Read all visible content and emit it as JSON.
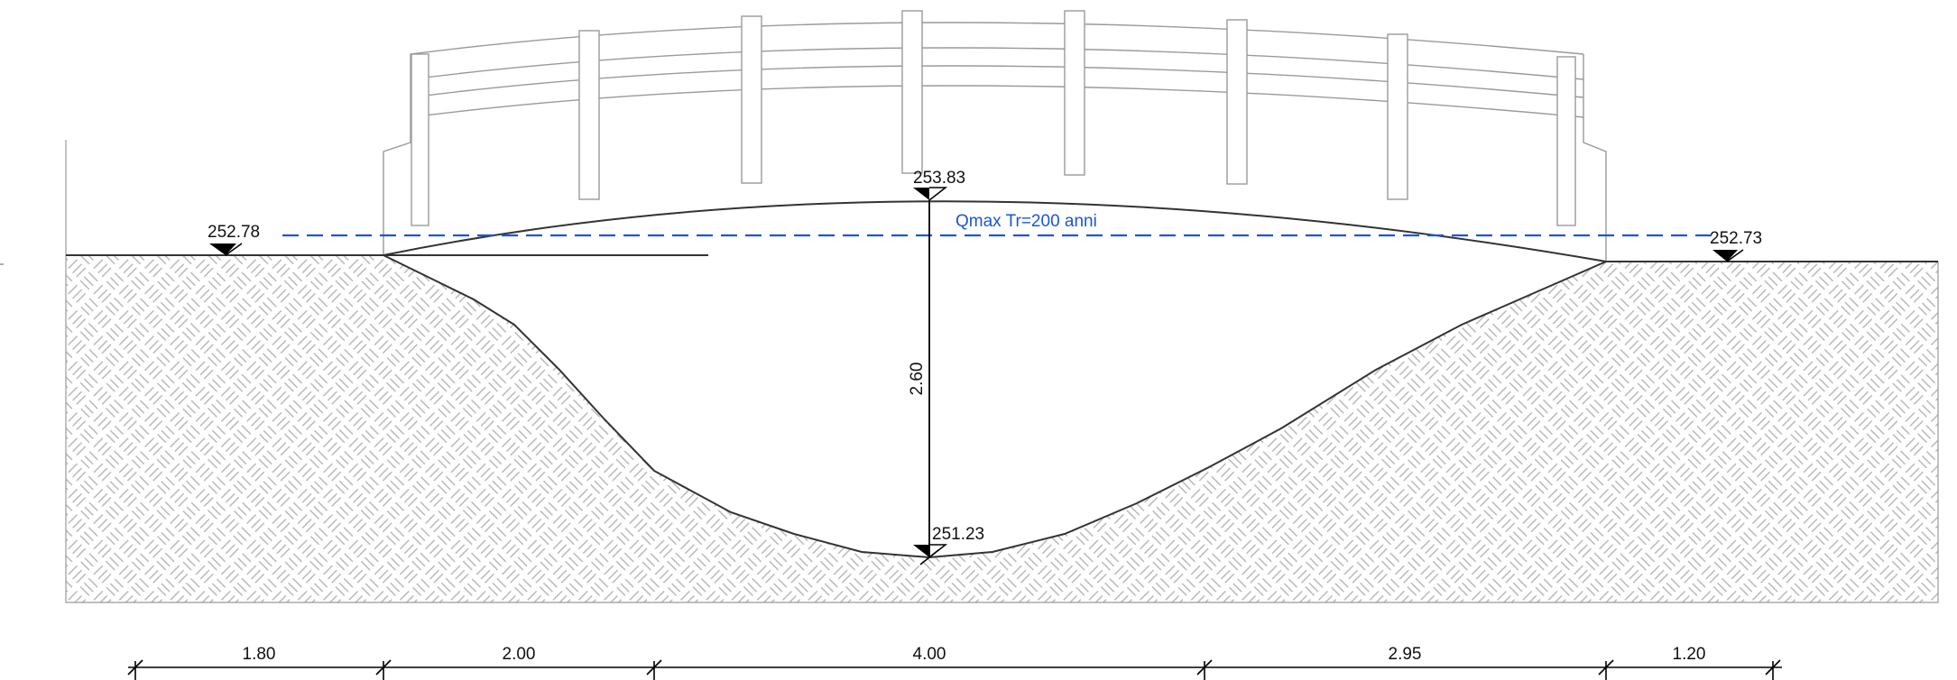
{
  "levels": {
    "left_bank": "252.78",
    "right_bank": "252.73",
    "bridge_top": "253.83",
    "channel_bottom": "251.23"
  },
  "flood_label": "Qmax Tr=200 anni",
  "depth_dimension": "2.60",
  "horizontal_dimensions": [
    "1.80",
    "2.00",
    "4.00",
    "2.95",
    "1.20"
  ],
  "colors": {
    "flood_line": "#1a56d8",
    "outline": "#333333",
    "hatch": "#b3b3b3",
    "railing": "#9a9a9a"
  }
}
